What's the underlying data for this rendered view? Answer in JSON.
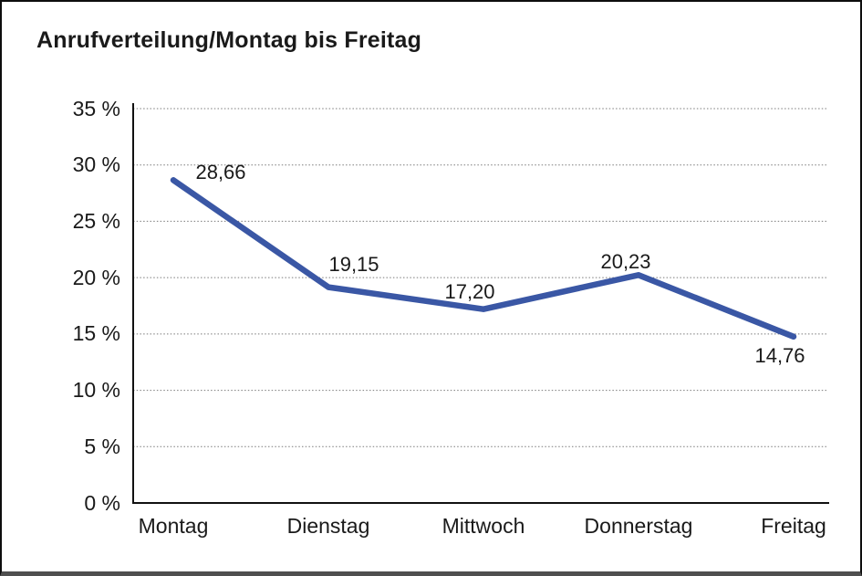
{
  "chart_data": {
    "type": "line",
    "title": "Anrufverteilung/Montag bis Freitag",
    "categories": [
      "Montag",
      "Dienstag",
      "Mittwoch",
      "Donnerstag",
      "Freitag"
    ],
    "values": [
      28.66,
      19.15,
      17.2,
      20.23,
      14.76
    ],
    "value_labels": [
      "28,66",
      "19,15",
      "17,20",
      "20,23",
      "14,76"
    ],
    "y_ticks": [
      {
        "value": 35,
        "label": "35 %"
      },
      {
        "value": 30,
        "label": "30 %"
      },
      {
        "value": 25,
        "label": "25 %"
      },
      {
        "value": 20,
        "label": "20 %"
      },
      {
        "value": 15,
        "label": "15 %"
      },
      {
        "value": 10,
        "label": "10 %"
      },
      {
        "value": 5,
        "label": "5 %"
      },
      {
        "value": 0,
        "label": "0 %"
      }
    ],
    "ylim": [
      0,
      35
    ],
    "xlabel": "",
    "ylabel": "",
    "legend": "none",
    "grid": "horizontal-dotted",
    "colors": {
      "series_line": "#3a57a5",
      "axis": "#111111",
      "gridline": "#7b7b7b",
      "text": "#1a1a1a",
      "background": "#ffffff",
      "frame_border": "#0d0d0d",
      "frame_bottom": "#4f4f4f"
    }
  }
}
